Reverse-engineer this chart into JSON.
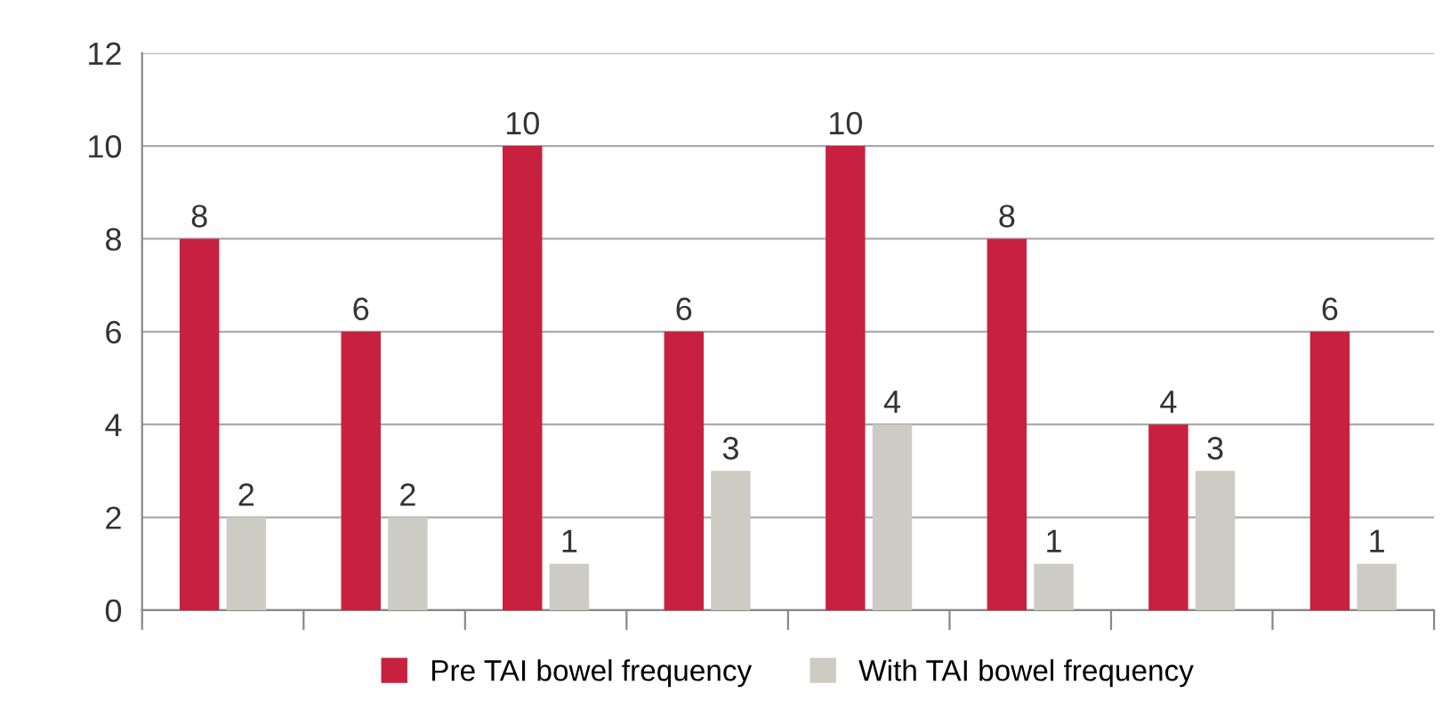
{
  "chart_data": {
    "type": "bar",
    "categories": [
      null,
      null,
      null,
      null,
      null,
      null,
      null,
      null
    ],
    "series": [
      {
        "name": "Pre TAI bowel frequency",
        "color": "#c8203f",
        "values": [
          8,
          6,
          10,
          6,
          10,
          8,
          4,
          6
        ]
      },
      {
        "name": "With TAI bowel frequency",
        "color": "#cdccc4",
        "values": [
          2,
          2,
          1,
          3,
          4,
          1,
          3,
          1
        ]
      }
    ],
    "ylim": [
      0,
      12
    ],
    "yticks": [
      0,
      2,
      4,
      6,
      8,
      10,
      12
    ],
    "grid": "y",
    "legend": "bottom",
    "data_labels": true
  }
}
